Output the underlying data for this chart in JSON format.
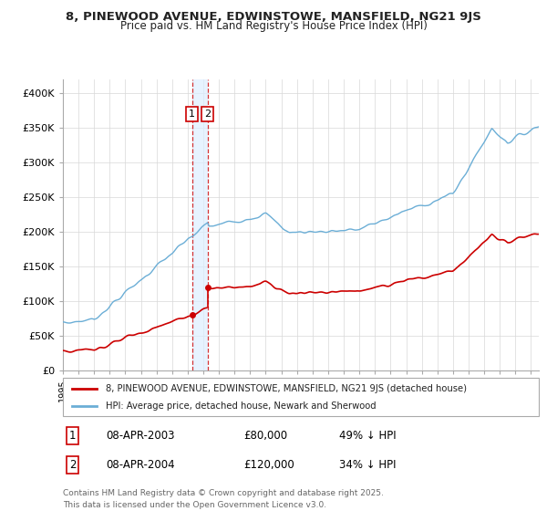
{
  "title_line1": "8, PINEWOOD AVENUE, EDWINSTOWE, MANSFIELD, NG21 9JS",
  "title_line2": "Price paid vs. HM Land Registry's House Price Index (HPI)",
  "hpi_color": "#6baed6",
  "price_color": "#cc0000",
  "sale1_date": 2003.27,
  "sale1_price": 80000,
  "sale2_date": 2004.27,
  "sale2_price": 120000,
  "vline_color": "#cc0000",
  "shade_color": "#ddeeff",
  "legend_label1": "8, PINEWOOD AVENUE, EDWINSTOWE, MANSFIELD, NG21 9JS (detached house)",
  "legend_label2": "HPI: Average price, detached house, Newark and Sherwood",
  "footer_line1": "Contains HM Land Registry data © Crown copyright and database right 2025.",
  "footer_line2": "This data is licensed under the Open Government Licence v3.0.",
  "background_color": "#ffffff",
  "grid_color": "#d8d8d8"
}
